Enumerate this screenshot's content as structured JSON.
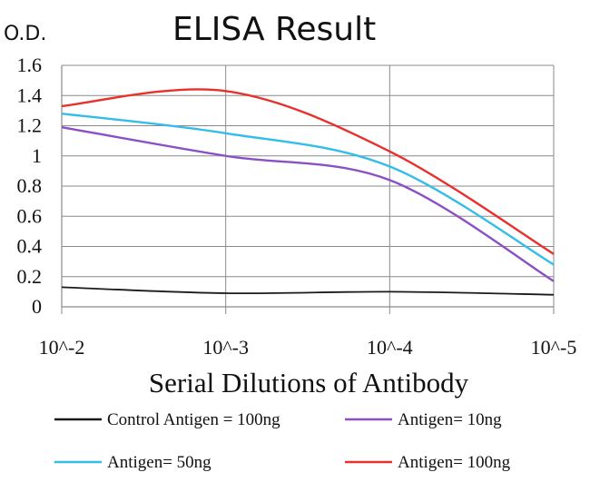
{
  "chart_data": {
    "type": "line",
    "title": "ELISA Result",
    "ylabel": "O.D.",
    "xlabel": "Serial Dilutions of Antibody",
    "categories": [
      "10^-2",
      "10^-3",
      "10^-4",
      "10^-5"
    ],
    "ylim": [
      0,
      1.6
    ],
    "yticks": [
      "0",
      "0.2",
      "0.4",
      "0.6",
      "0.8",
      "1",
      "1.2",
      "1.4",
      "1.6"
    ],
    "grid": true,
    "legend_position": "bottom",
    "series": [
      {
        "name": "Control Antigen = 100ng",
        "color": "#1a1a1a",
        "values": [
          0.13,
          0.09,
          0.1,
          0.08
        ]
      },
      {
        "name": "Antigen= 10ng",
        "color": "#8b4fc6",
        "values": [
          1.19,
          1.0,
          0.84,
          0.17
        ]
      },
      {
        "name": "Antigen= 50ng",
        "color": "#33bde8",
        "values": [
          1.28,
          1.15,
          0.93,
          0.28
        ]
      },
      {
        "name": "Antigen= 100ng",
        "color": "#e8302c",
        "values": [
          1.33,
          1.43,
          1.03,
          0.35
        ]
      }
    ]
  }
}
